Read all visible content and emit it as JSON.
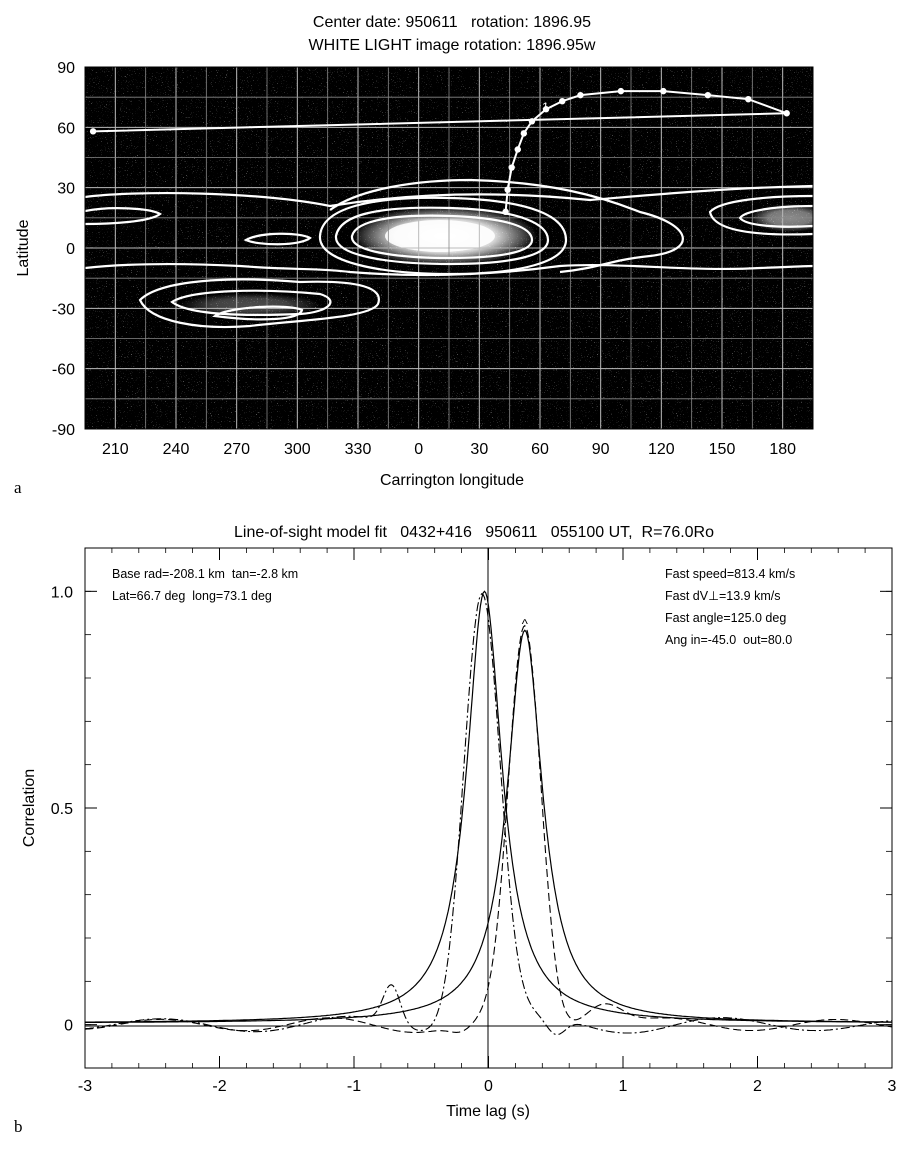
{
  "chart_data": [
    {
      "panel_label": "a",
      "type": "heatmap",
      "title": "Center date: 950611   rotation: 1896.95",
      "subtitle": "WHITE LIGHT image rotation: 1896.95w",
      "xlabel": "Carrington longitude",
      "ylabel": "Latitude",
      "x_ticks": [
        "210",
        "240",
        "270",
        "300",
        "330",
        "0",
        "30",
        "60",
        "90",
        "120",
        "150",
        "180"
      ],
      "y_ticks": [
        "90",
        "60",
        "30",
        "0",
        "-30",
        "-60",
        "-90"
      ],
      "ylim": [
        -90,
        90
      ],
      "background": "#000000",
      "grid": true,
      "track_marker": "1",
      "track_points": [
        {
          "lon": 43,
          "lat": 18
        },
        {
          "lon": 44,
          "lat": 29
        },
        {
          "lon": 46,
          "lat": 40
        },
        {
          "lon": 49,
          "lat": 49
        },
        {
          "lon": 52,
          "lat": 57
        },
        {
          "lon": 56,
          "lat": 63
        },
        {
          "lon": 63,
          "lat": 69
        },
        {
          "lon": 71,
          "lat": 73
        },
        {
          "lon": 80,
          "lat": 76
        },
        {
          "lon": 100,
          "lat": 78
        },
        {
          "lon": 121,
          "lat": 78
        },
        {
          "lon": 143,
          "lat": 76
        },
        {
          "lon": 163,
          "lat": 74
        },
        {
          "lon": 182,
          "lat": 67
        },
        {
          "lon": 199,
          "lat": 58
        }
      ]
    },
    {
      "panel_label": "b",
      "type": "line",
      "title": "Line-of-sight model fit   0432+416   950611   055100 UT,  R=76.0Ro",
      "xlabel": "Time lag (s)",
      "ylabel": "Correlation",
      "xlim": [
        -3,
        3
      ],
      "ylim": [
        -0.1,
        1.1
      ],
      "x_ticks": [
        "-3",
        "-2",
        "-1",
        "0",
        "1",
        "2",
        "3"
      ],
      "y_ticks": [
        "0",
        "0.5",
        "1.0"
      ],
      "y_tick_values": [
        0,
        0.5,
        1.0
      ],
      "annotations_left": [
        "Base rad=-208.1 km  tan=-2.8 km",
        "Lat=66.7 deg  long=73.1 deg"
      ],
      "annotations_right": [
        "Fast speed=813.4 km/s",
        "Fast dV⊥=13.9 km/s",
        "Fast angle=125.0 deg",
        "Ang in=-45.0  out=80.0"
      ],
      "peak_marker": "^",
      "series": [
        {
          "style": "solid",
          "peak_x": -0.03,
          "peak_y": 1.0
        },
        {
          "style": "solid",
          "peak_x": 0.27,
          "peak_y": 0.91
        },
        {
          "style": "dash-dot",
          "peak_x": -0.05,
          "peak_y": 1.0
        },
        {
          "style": "dashed",
          "peak_x": 0.27,
          "peak_y": 0.91
        }
      ]
    }
  ]
}
